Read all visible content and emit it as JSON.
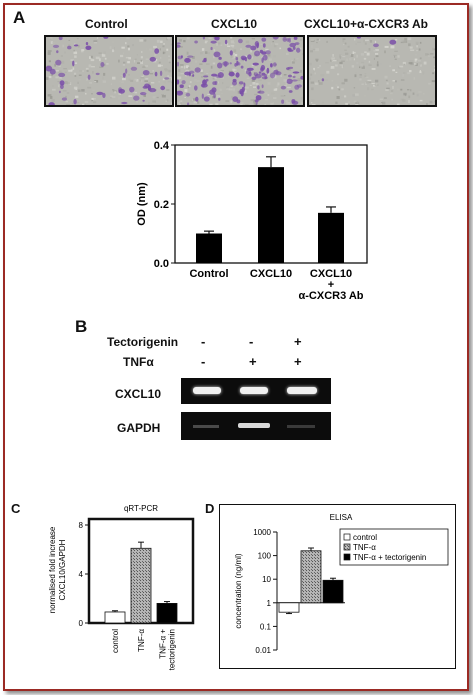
{
  "panelA": {
    "letter": "A",
    "image_titles": [
      "Control",
      "CXCL10",
      "CXCL10+α-CXCR3 Ab"
    ],
    "chart_data": {
      "type": "bar",
      "categories": [
        "Control",
        "CXCL10",
        "CXCL10 + α-CXCR3 Ab"
      ],
      "tick_text": [
        [
          "Control"
        ],
        [
          "CXCL10"
        ],
        [
          "CXCL10",
          "+",
          "α-CXCR3 Ab"
        ]
      ],
      "values": [
        0.1,
        0.325,
        0.17
      ],
      "errors": [
        0.008,
        0.035,
        0.02
      ],
      "ylabel": "OD (nm)",
      "ylim": [
        0,
        0.4
      ],
      "yticks": [
        0.0,
        0.2,
        0.4
      ],
      "ytick_labels": [
        "0.0",
        "0.2",
        "0.4"
      ],
      "bar_color": "#000000",
      "grid": false
    }
  },
  "panelB": {
    "letter": "B",
    "row_labels": [
      "Tectorigenin",
      "TNFα"
    ],
    "treatments": [
      [
        "-",
        "-",
        "+"
      ],
      [
        "-",
        "+",
        "+"
      ]
    ],
    "gel_labels": [
      "CXCL10",
      "GAPDH"
    ]
  },
  "panelC": {
    "letter": "C",
    "chart_data": {
      "type": "bar",
      "title": "qRT-PCR",
      "categories": [
        "control",
        "TNF-α",
        "TNF-α + tectorigenin"
      ],
      "tick_text": [
        [
          "control"
        ],
        [
          "TNF-α"
        ],
        [
          "TNF-α +",
          "tectorigenin"
        ]
      ],
      "values": [
        0.9,
        6.1,
        1.6
      ],
      "errors": [
        0.1,
        0.5,
        0.15
      ],
      "ylabel_lines": [
        "normalised fold increase",
        "CXCL10/GAPDH"
      ],
      "ylim": [
        0,
        8
      ],
      "yticks": [
        0,
        4,
        8
      ],
      "ytick_labels": [
        "0",
        "4",
        "8"
      ],
      "fills": [
        "white",
        "hatched-gray",
        "black"
      ],
      "grid": false
    }
  },
  "panelD": {
    "letter": "D",
    "chart_data": {
      "type": "bar",
      "title": "ELISA",
      "series": [
        {
          "name": "control",
          "value": 0.4,
          "error": 0.05,
          "fill": "white"
        },
        {
          "name": "TNF-α",
          "value": 160,
          "error": 50,
          "fill": "hatched-gray"
        },
        {
          "name": "TNF-α + tectorigenin",
          "value": 9,
          "error": 2,
          "fill": "black"
        }
      ],
      "ylabel": "concentration (ng/ml)",
      "yscale": "log",
      "ylim": [
        0.01,
        1000
      ],
      "yticks": [
        0.01,
        0.1,
        1,
        10,
        100,
        1000
      ],
      "ytick_labels": [
        "0.01",
        "0.1",
        "1",
        "10",
        "100",
        "1000"
      ],
      "legend_position": "top-right",
      "grid": false
    }
  },
  "colors": {
    "frame_border": "#9b2a24",
    "stain": "#7a4fa8",
    "band": "#efefef"
  }
}
